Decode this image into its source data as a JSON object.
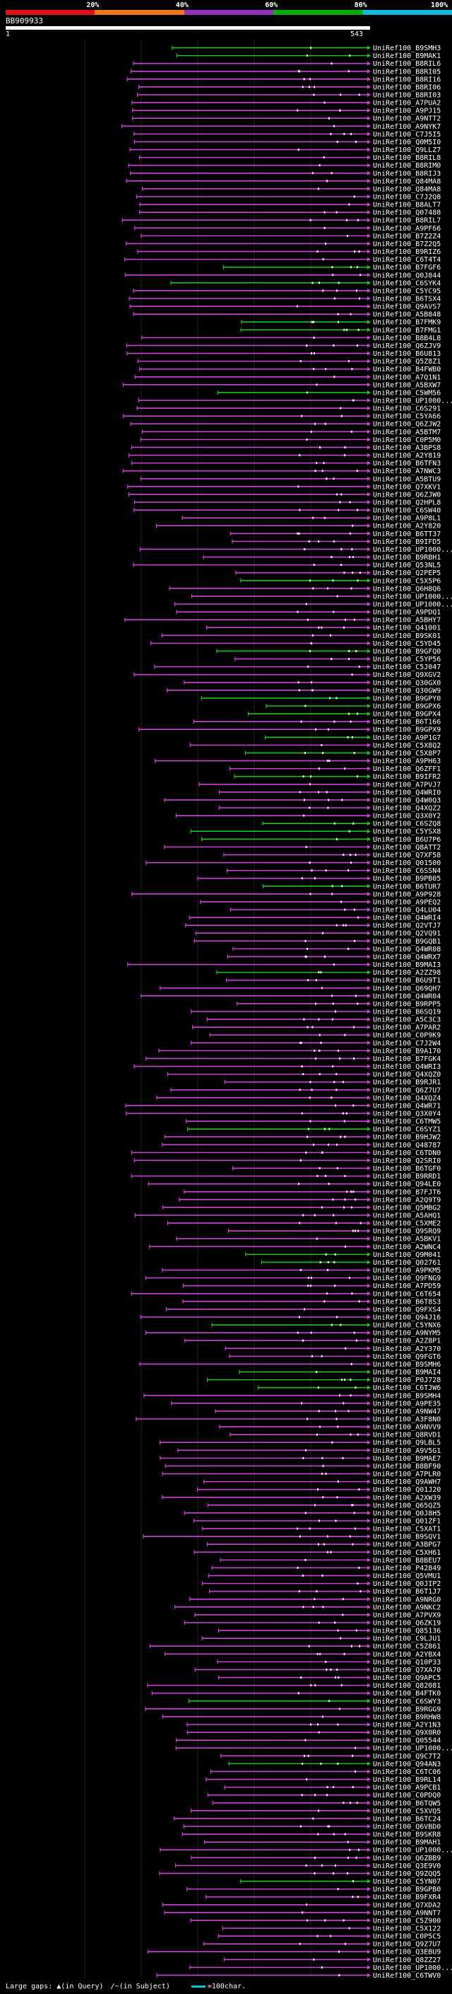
{
  "legend": {
    "segments": [
      {
        "label": "",
        "color": "#e0101a"
      },
      {
        "label": "20%",
        "color": "#f07818"
      },
      {
        "label": "40%",
        "color": "#9030c0"
      },
      {
        "label": "60%",
        "color": "#00b000"
      },
      {
        "label": "80%",
        "color": "#10b8e0"
      }
    ],
    "end_label": "100%"
  },
  "query": {
    "id": "BB909933",
    "start": "1",
    "end": "543"
  },
  "colors": {
    "magenta": "#d040d8",
    "green": "#20c020",
    "dot": "#ffffff",
    "grid": "#202020"
  },
  "hits": [
    {
      "id": "UniRef100_B9SMH3",
      "c": "g"
    },
    {
      "id": "UniRef100_B9MAK1",
      "c": "g"
    },
    {
      "id": "UniRef100_B8RIL6",
      "c": "m"
    },
    {
      "id": "UniRef100_B8RI05",
      "c": "m"
    },
    {
      "id": "UniRef100_B8RI16",
      "c": "m"
    },
    {
      "id": "UniRef100_B8RI06",
      "c": "m"
    },
    {
      "id": "UniRef100_B8RI03",
      "c": "m"
    },
    {
      "id": "UniRef100_A7PUA2",
      "c": "m"
    },
    {
      "id": "UniRef100_A9PJ15",
      "c": "m"
    },
    {
      "id": "UniRef100_A9NTT2",
      "c": "m"
    },
    {
      "id": "UniRef100_A9NYK7",
      "c": "m"
    },
    {
      "id": "UniRef100_C7J5I5",
      "c": "m"
    },
    {
      "id": "UniRef100_Q0M5I0",
      "c": "m"
    },
    {
      "id": "UniRef100_Q9LLZ7",
      "c": "m"
    },
    {
      "id": "UniRef100_B8RIL8",
      "c": "m"
    },
    {
      "id": "UniRef100_B8RIM0",
      "c": "m"
    },
    {
      "id": "UniRef100_B8RIJ3",
      "c": "m"
    },
    {
      "id": "UniRef100_Q84MA8",
      "c": "m"
    },
    {
      "id": "UniRef100_Q84MA8",
      "c": "m"
    },
    {
      "id": "UniRef100_C7J2Q8",
      "c": "m"
    },
    {
      "id": "UniRef100_B8ALT7",
      "c": "m"
    },
    {
      "id": "UniRef100_Q07488",
      "c": "m"
    },
    {
      "id": "UniRef100_B8RIL7",
      "c": "m"
    },
    {
      "id": "UniRef100_A9PF66",
      "c": "m"
    },
    {
      "id": "UniRef100_B7Z2Z4",
      "c": "m"
    },
    {
      "id": "UniRef100_B7Z2Q5",
      "c": "m"
    },
    {
      "id": "UniRef100_B9RIZ6",
      "c": "m"
    },
    {
      "id": "UniRef100_C6T4T4",
      "c": "m"
    },
    {
      "id": "UniRef100_B7FGF6",
      "c": "g"
    },
    {
      "id": "UniRef100_Q0J844",
      "c": "m"
    },
    {
      "id": "UniRef100_C6SYK4",
      "c": "g"
    },
    {
      "id": "UniRef100_C5YC95",
      "c": "m"
    },
    {
      "id": "UniRef100_B6TSX4",
      "c": "m"
    },
    {
      "id": "UniRef100_Q9AVS7",
      "c": "m"
    },
    {
      "id": "UniRef100_A5B848",
      "c": "m"
    },
    {
      "id": "UniRef100_B7FMK9",
      "c": "g"
    },
    {
      "id": "UniRef100_B7FMG1",
      "c": "g"
    },
    {
      "id": "UniRef100_B8B4L8",
      "c": "m"
    },
    {
      "id": "UniRef100_Q6ZJV9",
      "c": "m"
    },
    {
      "id": "UniRef100_B6U813",
      "c": "m"
    },
    {
      "id": "UniRef100_Q5Z8Z1",
      "c": "m"
    },
    {
      "id": "UniRef100_B4FWB0",
      "c": "m"
    },
    {
      "id": "UniRef100_A7Q1N1",
      "c": "m"
    },
    {
      "id": "UniRef100_A5BXW7",
      "c": "m"
    },
    {
      "id": "UniRef100_C5WM56",
      "c": "g"
    },
    {
      "id": "UniRef100_UP1000...",
      "c": "m"
    },
    {
      "id": "UniRef100_C6S291",
      "c": "m"
    },
    {
      "id": "UniRef100_C5YA66",
      "c": "m"
    },
    {
      "id": "UniRef100_Q6ZJW2",
      "c": "m"
    },
    {
      "id": "UniRef100_A5BTM7",
      "c": "m"
    },
    {
      "id": "UniRef100_C0P5M0",
      "c": "m"
    },
    {
      "id": "UniRef100_A3BPS8",
      "c": "m"
    },
    {
      "id": "UniRef100_A2Y819",
      "c": "m"
    },
    {
      "id": "UniRef100_B6TFN3",
      "c": "m"
    },
    {
      "id": "UniRef100_A7NWC3",
      "c": "m"
    },
    {
      "id": "UniRef100_A5BTU9",
      "c": "m"
    },
    {
      "id": "UniRef100_Q7XKV1",
      "c": "m"
    },
    {
      "id": "UniRef100_Q6ZJW0",
      "c": "m"
    },
    {
      "id": "UniRef100_Q2HPL8",
      "c": "m"
    },
    {
      "id": "UniRef100_C6SW40",
      "c": "m"
    },
    {
      "id": "UniRef100_A9P8L1",
      "c": "m"
    },
    {
      "id": "UniRef100_A2Y820",
      "c": "m"
    },
    {
      "id": "UniRef100_B6TT37",
      "c": "m"
    },
    {
      "id": "UniRef100_B9IFD5",
      "c": "m"
    },
    {
      "id": "UniRef100_UP1000...",
      "c": "m"
    },
    {
      "id": "UniRef100_B9RBH1",
      "c": "m"
    },
    {
      "id": "UniRef100_Q53NL5",
      "c": "m"
    },
    {
      "id": "UniRef100_Q2PEP5",
      "c": "m"
    },
    {
      "id": "UniRef100_C5X5P6",
      "c": "g"
    },
    {
      "id": "UniRef100_Q6H8Q6",
      "c": "m"
    },
    {
      "id": "UniRef100_UP1000...",
      "c": "m"
    },
    {
      "id": "UniRef100_UP1000...",
      "c": "m"
    },
    {
      "id": "UniRef100_A9PDQ1",
      "c": "m"
    },
    {
      "id": "UniRef100_A5BHY7",
      "c": "m"
    },
    {
      "id": "UniRef100_Q41001",
      "c": "m"
    },
    {
      "id": "UniRef100_B9SK01",
      "c": "m"
    },
    {
      "id": "UniRef100_C5YD45",
      "c": "m"
    },
    {
      "id": "UniRef100_B9GFQ0",
      "c": "g"
    },
    {
      "id": "UniRef100_C5YP56",
      "c": "m"
    },
    {
      "id": "UniRef100_C5J047",
      "c": "m"
    },
    {
      "id": "UniRef100_Q9XGV2",
      "c": "m"
    },
    {
      "id": "UniRef100_Q30GX0",
      "c": "m"
    },
    {
      "id": "UniRef100_Q30GW9",
      "c": "m"
    },
    {
      "id": "UniRef100_B9GPY0",
      "c": "g"
    },
    {
      "id": "UniRef100_B9GPX6",
      "c": "g"
    },
    {
      "id": "UniRef100_B9GPX4",
      "c": "g"
    },
    {
      "id": "UniRef100_B6T166",
      "c": "m"
    },
    {
      "id": "UniRef100_B9GPX9",
      "c": "m"
    },
    {
      "id": "UniRef100_A9P1G7",
      "c": "g"
    },
    {
      "id": "UniRef100_C5X8Q2",
      "c": "m"
    },
    {
      "id": "UniRef100_C5X8P7",
      "c": "g"
    },
    {
      "id": "UniRef100_A9PH63",
      "c": "m"
    },
    {
      "id": "UniRef100_Q6ZFF1",
      "c": "m"
    },
    {
      "id": "UniRef100_B9IFR2",
      "c": "g"
    },
    {
      "id": "UniRef100_A7PVJ7",
      "c": "m"
    },
    {
      "id": "UniRef100_Q4WRI0",
      "c": "m"
    },
    {
      "id": "UniRef100_Q4W0Q3",
      "c": "m"
    },
    {
      "id": "UniRef100_Q4XQZ2",
      "c": "m"
    },
    {
      "id": "UniRef100_Q3X0Y2",
      "c": "m"
    },
    {
      "id": "UniRef100_C6SZQ8",
      "c": "g"
    },
    {
      "id": "UniRef100_C5YSX8",
      "c": "g"
    },
    {
      "id": "UniRef100_B6U7P6",
      "c": "g"
    },
    {
      "id": "UniRef100_Q8ATT2",
      "c": "m"
    },
    {
      "id": "UniRef100_Q7XF58",
      "c": "m"
    },
    {
      "id": "UniRef100_Q01500",
      "c": "m"
    },
    {
      "id": "UniRef100_C6SSN4",
      "c": "m"
    },
    {
      "id": "UniRef100_B9PB05",
      "c": "m"
    },
    {
      "id": "UniRef100_B6TUR7",
      "c": "g"
    },
    {
      "id": "UniRef100_A9P928",
      "c": "m"
    },
    {
      "id": "UniRef100_A9PEQ2",
      "c": "m"
    },
    {
      "id": "UniRef100_Q4LU04",
      "c": "m"
    },
    {
      "id": "UniRef100_Q4WRI4",
      "c": "m"
    },
    {
      "id": "UniRef100_Q2VTJ7",
      "c": "m"
    },
    {
      "id": "UniRef100_Q2VQ91",
      "c": "m"
    },
    {
      "id": "UniRef100_B9GQB1",
      "c": "m"
    },
    {
      "id": "UniRef100_Q4WR08",
      "c": "m"
    },
    {
      "id": "UniRef100_Q4WRX7",
      "c": "m"
    },
    {
      "id": "UniRef100_B9MAI3",
      "c": "m"
    },
    {
      "id": "UniRef100_A2ZZ98",
      "c": "g"
    },
    {
      "id": "UniRef100_B6U9T1",
      "c": "m"
    },
    {
      "id": "UniRef100_Q69QH7",
      "c": "m"
    },
    {
      "id": "UniRef100_Q4WR04",
      "c": "m"
    },
    {
      "id": "UniRef100_B9RPP5",
      "c": "m"
    },
    {
      "id": "UniRef100_B6SQ19",
      "c": "m"
    },
    {
      "id": "UniRef100_A5C3C3",
      "c": "m"
    },
    {
      "id": "UniRef100_A7PAR2",
      "c": "m"
    },
    {
      "id": "UniRef100_C0P9K9",
      "c": "m"
    },
    {
      "id": "UniRef100_C7J2W4",
      "c": "m"
    },
    {
      "id": "UniRef100_B9A170",
      "c": "m"
    },
    {
      "id": "UniRef100_B7FGK4",
      "c": "m"
    },
    {
      "id": "UniRef100_Q4WRI3",
      "c": "m"
    },
    {
      "id": "UniRef100_Q4XQZ0",
      "c": "m"
    },
    {
      "id": "UniRef100_B9RJR1",
      "c": "m"
    },
    {
      "id": "UniRef100_Q6Z7U7",
      "c": "m"
    },
    {
      "id": "UniRef100_Q4XQZ4",
      "c": "m"
    },
    {
      "id": "UniRef100_Q4WR71",
      "c": "m"
    },
    {
      "id": "UniRef100_Q3X0Y4",
      "c": "m"
    },
    {
      "id": "UniRef100_C6TMW5",
      "c": "m"
    },
    {
      "id": "UniRef100_C6SYZ1",
      "c": "g"
    },
    {
      "id": "UniRef100_B9HJW2",
      "c": "m"
    },
    {
      "id": "UniRef100_Q48787",
      "c": "m"
    },
    {
      "id": "UniRef100_C6TDN0",
      "c": "m"
    },
    {
      "id": "UniRef100_Q2SRI0",
      "c": "m"
    },
    {
      "id": "UniRef100_B6TGF0",
      "c": "m"
    },
    {
      "id": "UniRef100_B9RRD1",
      "c": "m"
    },
    {
      "id": "UniRef100_Q94LE0",
      "c": "m"
    },
    {
      "id": "UniRef100_B7FJT6",
      "c": "m"
    },
    {
      "id": "UniRef100_A2Q9T9",
      "c": "m"
    },
    {
      "id": "UniRef100_Q5MBG2",
      "c": "m"
    },
    {
      "id": "UniRef100_A5AHQ1",
      "c": "m"
    },
    {
      "id": "UniRef100_C5XME2",
      "c": "m"
    },
    {
      "id": "UniRef100_Q9SRQ9",
      "c": "m"
    },
    {
      "id": "UniRef100_A5BKV1",
      "c": "m"
    },
    {
      "id": "UniRef100_A2WNC4",
      "c": "m"
    },
    {
      "id": "UniRef100_Q9M041",
      "c": "g"
    },
    {
      "id": "UniRef100_Q02761",
      "c": "g"
    },
    {
      "id": "UniRef100_A9PKM5",
      "c": "m"
    },
    {
      "id": "UniRef100_Q9FNG9",
      "c": "m"
    },
    {
      "id": "UniRef100_A7PD59",
      "c": "m"
    },
    {
      "id": "UniRef100_C6T654",
      "c": "m"
    },
    {
      "id": "UniRef100_B6T8S3",
      "c": "m"
    },
    {
      "id": "UniRef100_Q9FXS4",
      "c": "m"
    },
    {
      "id": "UniRef100_Q94J16",
      "c": "m"
    },
    {
      "id": "UniRef100_C5YNX6",
      "c": "g"
    },
    {
      "id": "UniRef100_A9NYM5",
      "c": "m"
    },
    {
      "id": "UniRef100_A2Z8P1",
      "c": "m"
    },
    {
      "id": "UniRef100_A2Y370",
      "c": "m"
    },
    {
      "id": "UniRef100_Q9FGT6",
      "c": "m"
    },
    {
      "id": "UniRef100_B9SMH6",
      "c": "m"
    },
    {
      "id": "UniRef100_B9MAI4",
      "c": "g"
    },
    {
      "id": "UniRef100_P0J728",
      "c": "g"
    },
    {
      "id": "UniRef100_C6TJW6",
      "c": "g"
    },
    {
      "id": "UniRef100_B9SMH4",
      "c": "m"
    },
    {
      "id": "UniRef100_A9PE35",
      "c": "m"
    },
    {
      "id": "UniRef100_A9NW47",
      "c": "m"
    },
    {
      "id": "UniRef100_A3F8N0",
      "c": "m"
    },
    {
      "id": "UniRef100_A9NVV9",
      "c": "m"
    },
    {
      "id": "UniRef100_Q8RVD1",
      "c": "m"
    },
    {
      "id": "UniRef100_Q9LBL5",
      "c": "m"
    },
    {
      "id": "UniRef100_A9V5G1",
      "c": "m"
    },
    {
      "id": "UniRef100_B9MAE7",
      "c": "m"
    },
    {
      "id": "UniRef100_B8BF90",
      "c": "m"
    },
    {
      "id": "UniRef100_A7PLR0",
      "c": "m"
    },
    {
      "id": "UniRef100_Q9AWH7",
      "c": "m"
    },
    {
      "id": "UniRef100_Q01J20",
      "c": "m"
    },
    {
      "id": "UniRef100_A2XW39",
      "c": "m"
    },
    {
      "id": "UniRef100_Q65QZ5",
      "c": "m"
    },
    {
      "id": "UniRef100_Q0J8H5",
      "c": "m"
    },
    {
      "id": "UniRef100_Q01ZF1",
      "c": "m"
    },
    {
      "id": "UniRef100_C5XAT1",
      "c": "m"
    },
    {
      "id": "UniRef100_B9SQV1",
      "c": "m"
    },
    {
      "id": "UniRef100_A3BPG7",
      "c": "m"
    },
    {
      "id": "UniRef100_C5XH61",
      "c": "m"
    },
    {
      "id": "UniRef100_B8BEU7",
      "c": "m"
    },
    {
      "id": "UniRef100_P42849",
      "c": "m"
    },
    {
      "id": "UniRef100_Q5VMU1",
      "c": "m"
    },
    {
      "id": "UniRef100_Q0JIP2",
      "c": "m"
    },
    {
      "id": "UniRef100_B6T1J7",
      "c": "m"
    },
    {
      "id": "UniRef100_A9NRG0",
      "c": "m"
    },
    {
      "id": "UniRef100_A9NKC2",
      "c": "m"
    },
    {
      "id": "UniRef100_A7PVX9",
      "c": "m"
    },
    {
      "id": "UniRef100_Q6ZK19",
      "c": "m"
    },
    {
      "id": "UniRef100_Q85136",
      "c": "m"
    },
    {
      "id": "UniRef100_C9LJU1",
      "c": "m"
    },
    {
      "id": "UniRef100_C5Z861",
      "c": "m"
    },
    {
      "id": "UniRef100_A2YBX4",
      "c": "m"
    },
    {
      "id": "UniRef100_Q10P33",
      "c": "m"
    },
    {
      "id": "UniRef100_Q7XA70",
      "c": "m"
    },
    {
      "id": "UniRef100_Q9APC5",
      "c": "m"
    },
    {
      "id": "UniRef100_Q82081",
      "c": "m"
    },
    {
      "id": "UniRef100_B4FTK0",
      "c": "m"
    },
    {
      "id": "UniRef100_C6SWY3",
      "c": "g"
    },
    {
      "id": "UniRef100_B9RGG9",
      "c": "m"
    },
    {
      "id": "UniRef100_B9RHW8",
      "c": "m"
    },
    {
      "id": "UniRef100_A2Y1N3",
      "c": "m"
    },
    {
      "id": "UniRef100_Q9X0R0",
      "c": "m"
    },
    {
      "id": "UniRef100_Q05544",
      "c": "m"
    },
    {
      "id": "UniRef100_UP1000...",
      "c": "m"
    },
    {
      "id": "UniRef100_Q9C7T2",
      "c": "m"
    },
    {
      "id": "UniRef100_Q94AN3",
      "c": "g"
    },
    {
      "id": "UniRef100_C6TC06",
      "c": "m"
    },
    {
      "id": "UniRef100_B9RL14",
      "c": "m"
    },
    {
      "id": "UniRef100_A9PCB1",
      "c": "m"
    },
    {
      "id": "UniRef100_C0PDQ0",
      "c": "m"
    },
    {
      "id": "UniRef100_B6TQW5",
      "c": "m"
    },
    {
      "id": "UniRef100_C5XVQ5",
      "c": "m"
    },
    {
      "id": "UniRef100_B6TC24",
      "c": "m"
    },
    {
      "id": "UniRef100_Q6VBD0",
      "c": "m"
    },
    {
      "id": "UniRef100_B9SKR8",
      "c": "m"
    },
    {
      "id": "UniRef100_B9MAH1",
      "c": "m"
    },
    {
      "id": "UniRef100_UP1000...",
      "c": "m"
    },
    {
      "id": "UniRef100_Q6ZBB9",
      "c": "m"
    },
    {
      "id": "UniRef100_Q3E9V0",
      "c": "m"
    },
    {
      "id": "UniRef100_Q9ZQQ5",
      "c": "m"
    },
    {
      "id": "UniRef100_C5YN07",
      "c": "g"
    },
    {
      "id": "UniRef100_B9GPB0",
      "c": "m"
    },
    {
      "id": "UniRef100_B9FXR4",
      "c": "m"
    },
    {
      "id": "UniRef100_Q7XDA2",
      "c": "m"
    },
    {
      "id": "UniRef100_A9NNT7",
      "c": "m"
    },
    {
      "id": "UniRef100_C5Z900",
      "c": "m"
    },
    {
      "id": "UniRef100_C5X122",
      "c": "m"
    },
    {
      "id": "UniRef100_C0P5C5",
      "c": "m"
    },
    {
      "id": "UniRef100_Q9Z7U7",
      "c": "m"
    },
    {
      "id": "UniRef100_Q3EBU9",
      "c": "m"
    },
    {
      "id": "UniRef100_Q8ZZ27",
      "c": "m"
    },
    {
      "id": "UniRef100_UP1000...",
      "c": "m"
    },
    {
      "id": "UniRef100_C6TWV0",
      "c": "m"
    }
  ],
  "footer": {
    "large_gaps": "Large gaps:",
    "query_gap": "(in Query)",
    "subject_gap": "(in Subject)",
    "scale_key": "=100char."
  }
}
